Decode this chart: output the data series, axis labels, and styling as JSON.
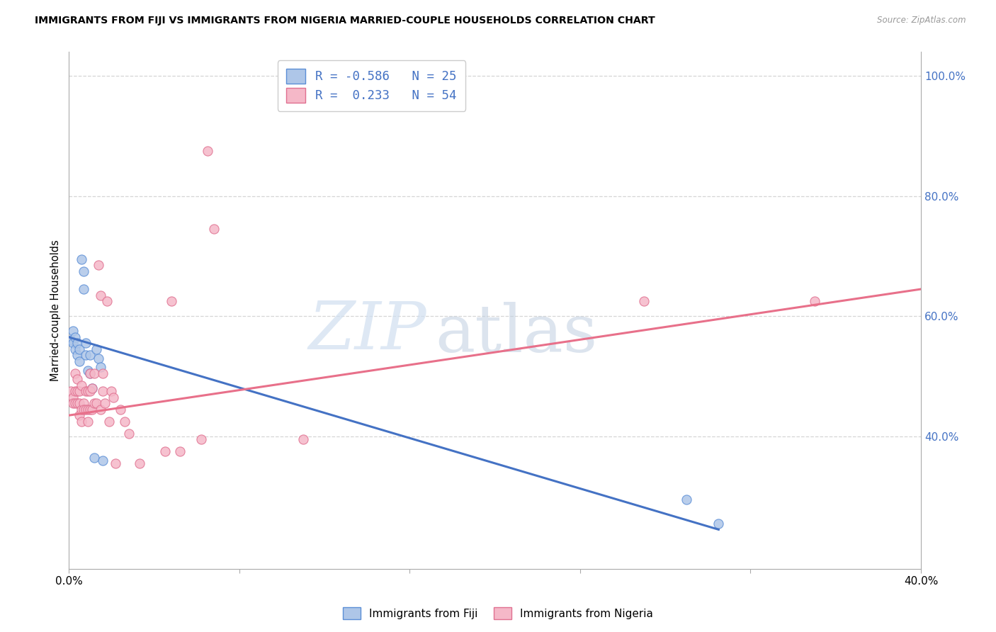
{
  "title": "IMMIGRANTS FROM FIJI VS IMMIGRANTS FROM NIGERIA MARRIED-COUPLE HOUSEHOLDS CORRELATION CHART",
  "source": "Source: ZipAtlas.com",
  "ylabel": "Married-couple Households",
  "xlim": [
    0.0,
    0.4
  ],
  "ylim": [
    0.18,
    1.04
  ],
  "xtick_positions": [
    0.0,
    0.08,
    0.16,
    0.24,
    0.32,
    0.4
  ],
  "xticklabels": [
    "0.0%",
    "",
    "",
    "",
    "",
    "40.0%"
  ],
  "yticks_right": [
    0.4,
    0.6,
    0.8,
    1.0
  ],
  "ytick_right_labels": [
    "40.0%",
    "60.0%",
    "80.0%",
    "100.0%"
  ],
  "fiji_fill_color": "#aec6e8",
  "fiji_edge_color": "#5b8ed6",
  "nigeria_fill_color": "#f5b8c8",
  "nigeria_edge_color": "#e07090",
  "fiji_line_color": "#4472c4",
  "nigeria_line_color": "#e8708a",
  "fiji_R": -0.586,
  "fiji_N": 25,
  "nigeria_R": 0.233,
  "nigeria_N": 54,
  "watermark_zip": "ZIP",
  "watermark_atlas": "atlas",
  "legend_label_fiji": "Immigrants from Fiji",
  "legend_label_nigeria": "Immigrants from Nigeria",
  "fiji_line_x0": 0.0,
  "fiji_line_y0": 0.565,
  "fiji_line_x1": 0.305,
  "fiji_line_y1": 0.245,
  "nigeria_line_x0": 0.0,
  "nigeria_line_y0": 0.435,
  "nigeria_line_x1": 0.4,
  "nigeria_line_y1": 0.645,
  "fiji_points": [
    [
      0.001,
      0.56
    ],
    [
      0.002,
      0.575
    ],
    [
      0.002,
      0.555
    ],
    [
      0.003,
      0.565
    ],
    [
      0.003,
      0.545
    ],
    [
      0.004,
      0.555
    ],
    [
      0.004,
      0.535
    ],
    [
      0.005,
      0.545
    ],
    [
      0.005,
      0.525
    ],
    [
      0.006,
      0.695
    ],
    [
      0.007,
      0.675
    ],
    [
      0.007,
      0.645
    ],
    [
      0.008,
      0.555
    ],
    [
      0.008,
      0.535
    ],
    [
      0.009,
      0.51
    ],
    [
      0.01,
      0.535
    ],
    [
      0.01,
      0.505
    ],
    [
      0.011,
      0.48
    ],
    [
      0.012,
      0.365
    ],
    [
      0.013,
      0.545
    ],
    [
      0.014,
      0.53
    ],
    [
      0.015,
      0.515
    ],
    [
      0.016,
      0.36
    ],
    [
      0.29,
      0.295
    ],
    [
      0.305,
      0.255
    ]
  ],
  "nigeria_points": [
    [
      0.001,
      0.475
    ],
    [
      0.002,
      0.465
    ],
    [
      0.002,
      0.455
    ],
    [
      0.003,
      0.505
    ],
    [
      0.003,
      0.475
    ],
    [
      0.003,
      0.455
    ],
    [
      0.004,
      0.495
    ],
    [
      0.004,
      0.475
    ],
    [
      0.004,
      0.455
    ],
    [
      0.005,
      0.475
    ],
    [
      0.005,
      0.455
    ],
    [
      0.005,
      0.435
    ],
    [
      0.006,
      0.485
    ],
    [
      0.006,
      0.445
    ],
    [
      0.006,
      0.425
    ],
    [
      0.007,
      0.455
    ],
    [
      0.007,
      0.445
    ],
    [
      0.008,
      0.475
    ],
    [
      0.008,
      0.445
    ],
    [
      0.009,
      0.475
    ],
    [
      0.009,
      0.445
    ],
    [
      0.009,
      0.425
    ],
    [
      0.01,
      0.505
    ],
    [
      0.01,
      0.475
    ],
    [
      0.01,
      0.445
    ],
    [
      0.011,
      0.48
    ],
    [
      0.011,
      0.445
    ],
    [
      0.012,
      0.505
    ],
    [
      0.012,
      0.455
    ],
    [
      0.013,
      0.455
    ],
    [
      0.014,
      0.685
    ],
    [
      0.015,
      0.635
    ],
    [
      0.015,
      0.445
    ],
    [
      0.016,
      0.505
    ],
    [
      0.016,
      0.475
    ],
    [
      0.017,
      0.455
    ],
    [
      0.018,
      0.625
    ],
    [
      0.019,
      0.425
    ],
    [
      0.02,
      0.475
    ],
    [
      0.021,
      0.465
    ],
    [
      0.022,
      0.355
    ],
    [
      0.024,
      0.445
    ],
    [
      0.026,
      0.425
    ],
    [
      0.028,
      0.405
    ],
    [
      0.033,
      0.355
    ],
    [
      0.045,
      0.375
    ],
    [
      0.048,
      0.625
    ],
    [
      0.052,
      0.375
    ],
    [
      0.065,
      0.875
    ],
    [
      0.068,
      0.745
    ],
    [
      0.062,
      0.395
    ],
    [
      0.11,
      0.395
    ],
    [
      0.27,
      0.625
    ],
    [
      0.35,
      0.625
    ]
  ],
  "grid_color": "#cccccc",
  "grid_alpha": 0.8
}
